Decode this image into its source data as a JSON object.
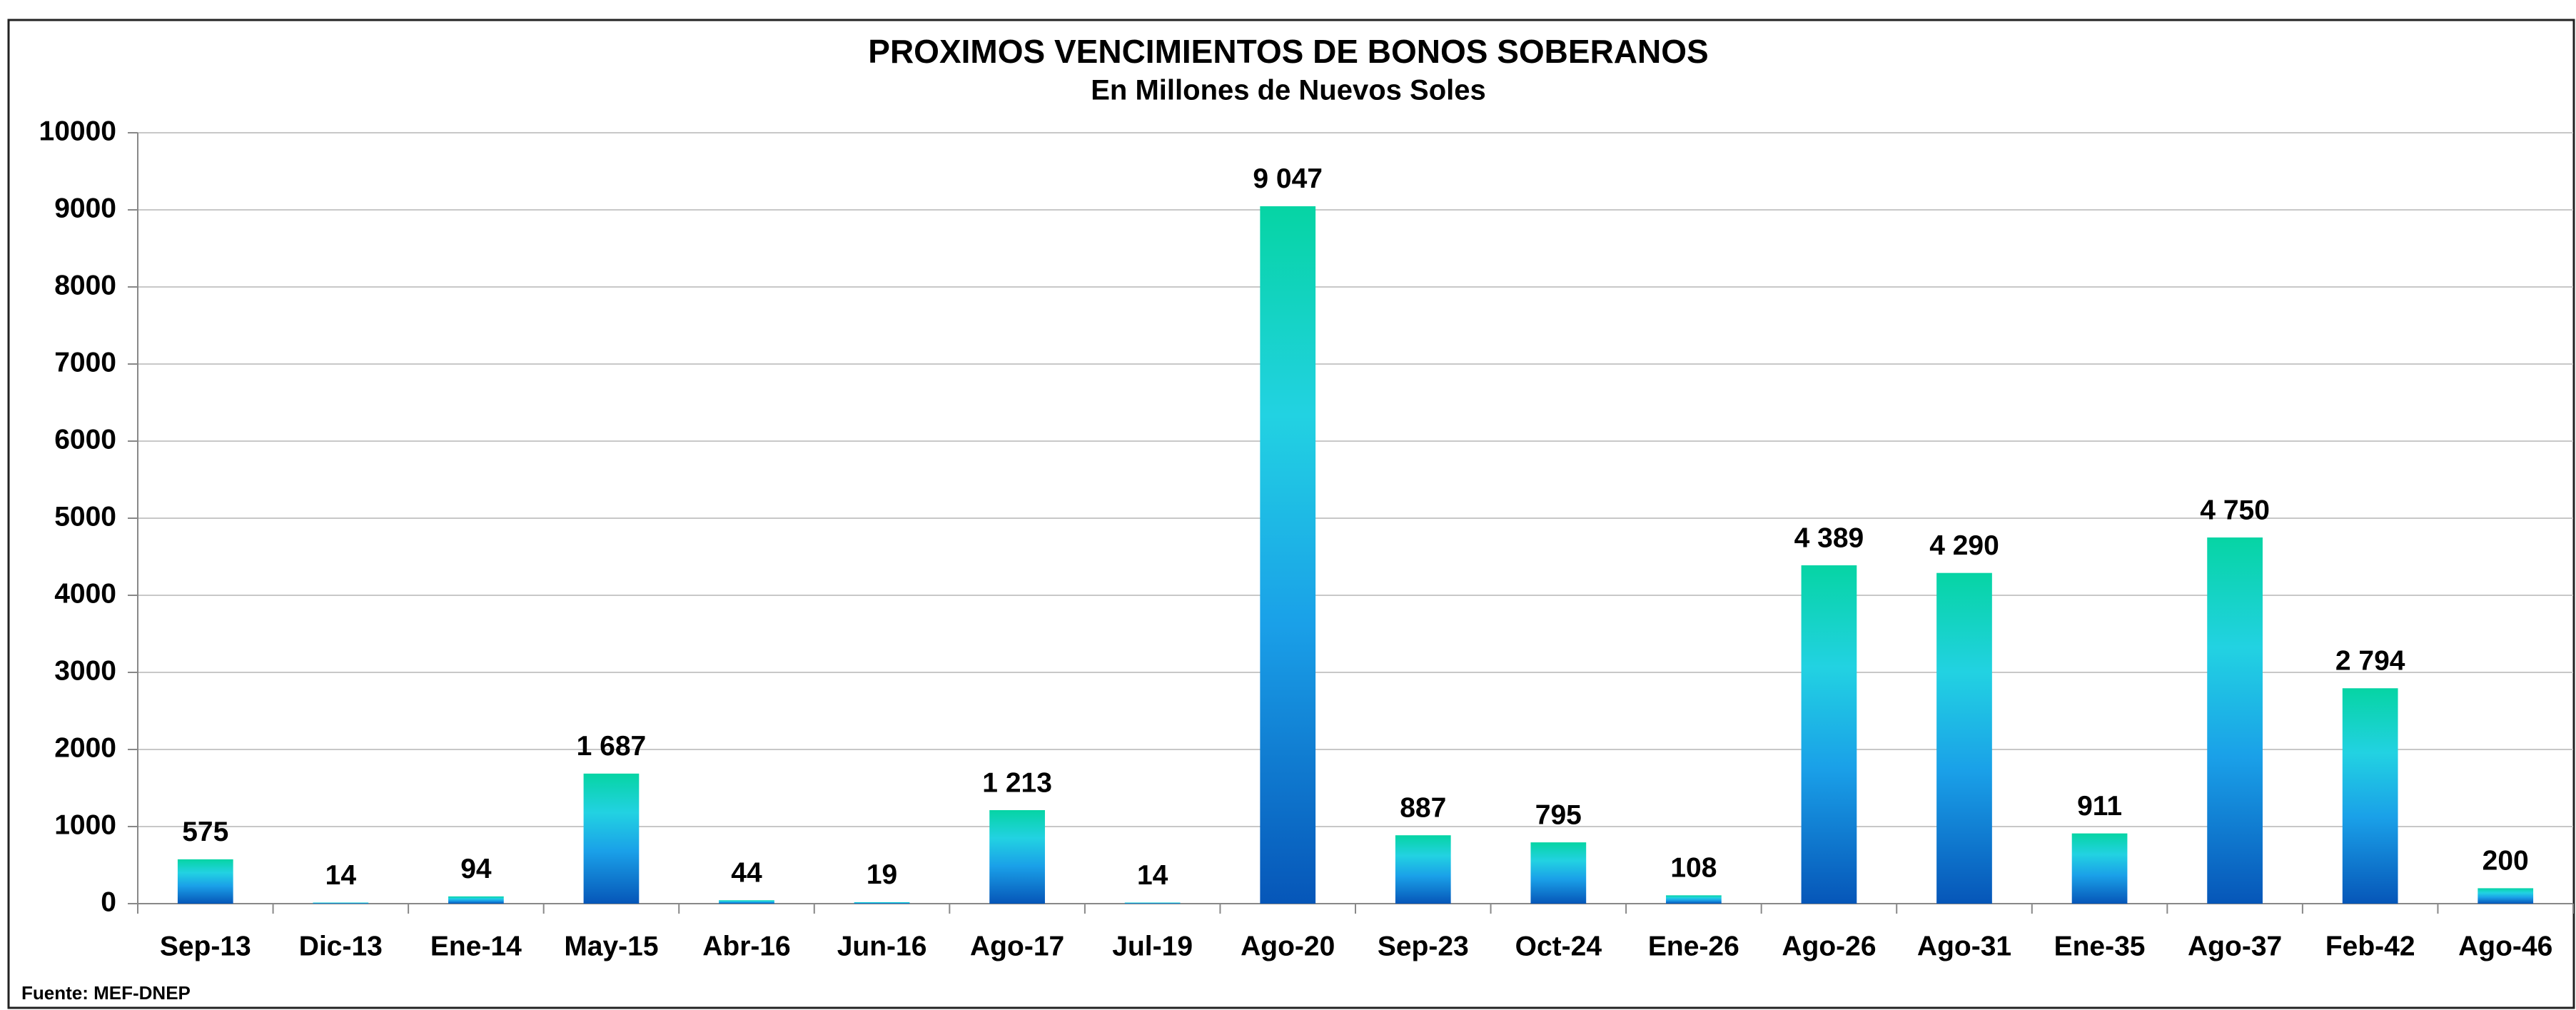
{
  "chart_data": {
    "type": "bar",
    "title": "PROXIMOS VENCIMIENTOS DE BONOS SOBERANOS",
    "subtitle": "En Millones de Nuevos Soles",
    "source": "Fuente:  MEF-DNEP",
    "categories": [
      "Sep-13",
      "Dic-13",
      "Ene-14",
      "May-15",
      "Abr-16",
      "Jun-16",
      "Ago-17",
      "Jul-19",
      "Ago-20",
      "Sep-23",
      "Oct-24",
      "Ene-26",
      "Ago-26",
      "Ago-31",
      "Ene-35",
      "Ago-37",
      "Feb-42",
      "Ago-46"
    ],
    "values": [
      575,
      14,
      94,
      1687,
      44,
      19,
      1213,
      14,
      9047,
      887,
      795,
      108,
      4389,
      4290,
      911,
      4750,
      2794,
      200
    ],
    "value_labels": [
      "575",
      "14",
      "94",
      "1 687",
      "44",
      "19",
      "1 213",
      "14",
      "9 047",
      "887",
      "795",
      "108",
      "4 389",
      "4 290",
      "911",
      "4 750",
      "2 794",
      "200"
    ],
    "colors": [
      "#0656b8",
      "#1aa0e8",
      "#22d2e2",
      "#06d4a4"
    ],
    "ylim": [
      0,
      10000
    ],
    "yticks": [
      0,
      1000,
      2000,
      3000,
      4000,
      5000,
      6000,
      7000,
      8000,
      9000,
      10000
    ],
    "grid": true
  }
}
